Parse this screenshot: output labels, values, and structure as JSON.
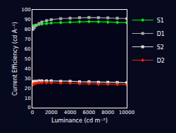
{
  "chart_data": {
    "type": "line",
    "xlabel": "Luminance (cd m⁻²)",
    "ylabel": "Current Efficiency (cd A⁻¹)",
    "x": [
      50,
      100,
      200,
      400,
      700,
      1000,
      1500,
      2000,
      3000,
      4000,
      5000,
      6000,
      7000,
      8000,
      9000,
      10000
    ],
    "series": [
      {
        "name": "S1",
        "color": "#00ee00",
        "marker": "diamond",
        "values": [
          83,
          83.5,
          84,
          84.5,
          85,
          85.5,
          86,
          86.5,
          87,
          87.5,
          87.8,
          88,
          87.8,
          87.5,
          87.2,
          87
        ]
      },
      {
        "name": "D1",
        "color": "#aaaaaa",
        "marker": "square",
        "values": [
          80,
          81,
          82,
          84,
          86,
          87.5,
          89,
          90,
          91,
          91.5,
          92,
          92.2,
          92,
          91.8,
          91.5,
          91
        ]
      },
      {
        "name": "S2",
        "color": "#dddddd",
        "marker": "square",
        "values": [
          26,
          26.5,
          27,
          27,
          27.5,
          27.5,
          27.5,
          27.5,
          27,
          27,
          26.5,
          26.5,
          26,
          26,
          25.8,
          25.5
        ]
      },
      {
        "name": "D2",
        "color": "#ee2200",
        "marker": "diamond",
        "values": [
          23.5,
          24,
          24.5,
          25,
          25.5,
          25.5,
          25.5,
          25.5,
          25,
          25,
          24.5,
          24.5,
          24,
          24,
          23.8,
          23.5
        ]
      }
    ],
    "xlim": [
      0,
      10000
    ],
    "ylim": [
      0,
      100
    ],
    "xticks": [
      0,
      2000,
      4000,
      6000,
      8000,
      10000
    ],
    "yticks": [
      0,
      10,
      20,
      30,
      40,
      50,
      60,
      70,
      80,
      90,
      100
    ],
    "grid": false,
    "legend": "right"
  }
}
